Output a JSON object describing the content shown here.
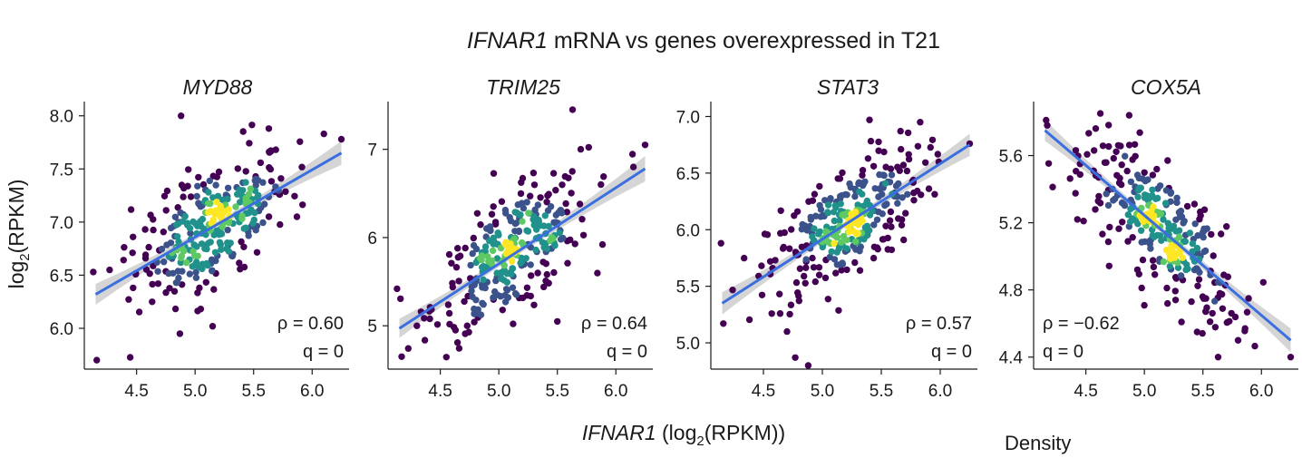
{
  "figure": {
    "title_gene": "IFNAR1",
    "title_rest": " mRNA vs genes overexpressed in T21",
    "xlabel_gene": "IFNAR1",
    "xlabel_pre": " (log",
    "xlabel_sub": "2",
    "xlabel_post": "(RPKM))",
    "ylabel_pre": "log",
    "ylabel_sub": "2",
    "ylabel_post": "(RPKM)",
    "density_label": "Density"
  },
  "colors": {
    "density_low": "#440154",
    "density_mid_low": "#3b528b",
    "density_mid": "#21918c",
    "density_mid_high": "#5ec962",
    "density_high": "#fde725",
    "fit_line": "#3b6fe0",
    "ci_band": "#c7c7c7"
  },
  "chart_data": [
    {
      "type": "scatter",
      "title": "MYD88",
      "rho_label": "ρ = 0.60",
      "q_label": "q = 0",
      "xlim": [
        4.1,
        6.3
      ],
      "ylim": [
        5.65,
        8.1
      ],
      "xticks": [
        4.5,
        5.0,
        5.5,
        6.0
      ],
      "xtick_labels": [
        "4.5",
        "5.0",
        "5.5",
        "6.0"
      ],
      "yticks": [
        6.0,
        6.5,
        7.0,
        7.5,
        8.0
      ],
      "ytick_labels": [
        "6.0",
        "6.5",
        "7.0",
        "7.5",
        "8.0"
      ],
      "fit": {
        "x": [
          4.15,
          6.25
        ],
        "y": [
          6.32,
          7.65
        ]
      },
      "center": [
        5.15,
        6.97
      ],
      "outliers": [
        [
          4.16,
          5.7
        ],
        [
          4.13,
          6.53
        ],
        [
          4.88,
          8.0
        ],
        [
          5.15,
          6.02
        ],
        [
          5.63,
          7.88
        ],
        [
          6.1,
          7.83
        ],
        [
          6.25,
          7.78
        ],
        [
          5.87,
          7.05
        ],
        [
          4.87,
          5.95
        ],
        [
          4.27,
          6.55
        ]
      ]
    },
    {
      "type": "scatter",
      "title": "TRIM25",
      "rho_label": "ρ = 0.64",
      "q_label": "q = 0",
      "xlim": [
        4.1,
        6.3
      ],
      "ylim": [
        4.55,
        7.5
      ],
      "xticks": [
        4.5,
        5.0,
        5.5,
        6.0
      ],
      "xtick_labels": [
        "4.5",
        "5.0",
        "5.5",
        "6.0"
      ],
      "yticks": [
        5,
        6,
        7
      ],
      "ytick_labels": [
        "5",
        "6",
        "7"
      ],
      "fit": {
        "x": [
          4.15,
          6.25
        ],
        "y": [
          4.97,
          6.78
        ]
      },
      "center": [
        5.1,
        5.72
      ],
      "outliers": [
        [
          4.17,
          4.65
        ],
        [
          4.13,
          5.42
        ],
        [
          5.63,
          7.45
        ],
        [
          5.7,
          7.0
        ],
        [
          6.25,
          7.05
        ],
        [
          4.73,
          5.0
        ],
        [
          5.5,
          5.05
        ],
        [
          4.3,
          5.0
        ],
        [
          6.15,
          6.8
        ]
      ]
    },
    {
      "type": "scatter",
      "title": "STAT3",
      "rho_label": "ρ = 0.57",
      "q_label": "q = 0",
      "xlim": [
        4.1,
        6.3
      ],
      "ylim": [
        4.8,
        7.1
      ],
      "xticks": [
        4.5,
        5.0,
        5.5,
        6.0
      ],
      "xtick_labels": [
        "4.5",
        "5.0",
        "5.5",
        "6.0"
      ],
      "yticks": [
        5.0,
        5.5,
        6.0,
        6.5,
        7.0
      ],
      "ytick_labels": [
        "5.0",
        "5.5",
        "6.0",
        "6.5",
        "7.0"
      ],
      "fit": {
        "x": [
          4.15,
          6.25
        ],
        "y": [
          5.35,
          6.75
        ]
      },
      "center": [
        5.2,
        6.1
      ],
      "outliers": [
        [
          4.16,
          5.17
        ],
        [
          4.14,
          5.88
        ],
        [
          4.88,
          4.8
        ],
        [
          4.77,
          4.87
        ],
        [
          5.83,
          6.95
        ],
        [
          6.25,
          6.76
        ],
        [
          5.4,
          6.97
        ],
        [
          4.7,
          5.1
        ]
      ]
    },
    {
      "type": "scatter",
      "title": "COX5A",
      "rho_label": "ρ = −0.62",
      "q_label": "q = 0",
      "xlim": [
        4.1,
        6.3
      ],
      "ylim": [
        4.35,
        5.9
      ],
      "xticks": [
        4.5,
        5.0,
        5.5,
        6.0
      ],
      "xtick_labels": [
        "4.5",
        "5.0",
        "5.5",
        "6.0"
      ],
      "yticks": [
        4.4,
        4.8,
        5.2,
        5.6
      ],
      "ytick_labels": [
        "4.4",
        "4.8",
        "5.2",
        "5.6"
      ],
      "fit": {
        "x": [
          4.15,
          6.25
        ],
        "y": [
          5.75,
          4.5
        ]
      },
      "center": [
        5.15,
        5.15
      ],
      "outliers": [
        [
          4.17,
          5.78
        ],
        [
          4.87,
          5.84
        ],
        [
          6.25,
          4.4
        ],
        [
          5.63,
          4.4
        ],
        [
          5.8,
          4.5
        ],
        [
          4.45,
          5.55
        ],
        [
          5.45,
          4.55
        ]
      ]
    }
  ]
}
